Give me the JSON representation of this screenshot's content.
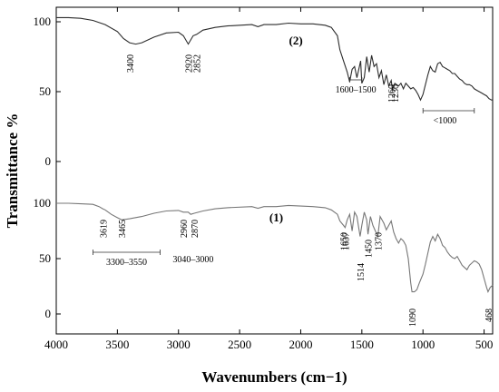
{
  "chart_data": {
    "type": "line",
    "xlabel": "Wavenumbers (cm−1)",
    "ylabel": "Transmittance %",
    "xlim": [
      4000,
      430
    ],
    "x_reversed": true,
    "x_ticks": [
      4000,
      3500,
      3000,
      2500,
      2000,
      1500,
      1000,
      500
    ],
    "y_tick_labels_upper": [
      "100",
      "50",
      "0"
    ],
    "y_tick_labels_lower": [
      "100",
      "50",
      "0"
    ],
    "upper_panel_ylim": [
      0,
      100
    ],
    "lower_panel_ylim": [
      0,
      100
    ],
    "grid": false,
    "series": [
      {
        "name": "(2)",
        "color": "#2b2b2b",
        "panel": "upper",
        "x": [
          4000,
          3900,
          3800,
          3700,
          3600,
          3500,
          3450,
          3400,
          3350,
          3300,
          3200,
          3100,
          3000,
          2960,
          2920,
          2880,
          2852,
          2800,
          2700,
          2600,
          2400,
          2350,
          2300,
          2200,
          2100,
          2000,
          1900,
          1800,
          1750,
          1700,
          1680,
          1650,
          1620,
          1600,
          1580,
          1560,
          1540,
          1510,
          1500,
          1480,
          1460,
          1440,
          1420,
          1400,
          1380,
          1360,
          1340,
          1320,
          1300,
          1280,
          1260,
          1250,
          1230,
          1200,
          1180,
          1160,
          1140,
          1100,
          1080,
          1060,
          1040,
          1020,
          1000,
          980,
          960,
          940,
          920,
          900,
          880,
          860,
          840,
          820,
          800,
          780,
          760,
          740,
          720,
          700,
          680,
          660,
          640,
          620,
          600,
          580,
          560,
          540,
          520,
          500,
          480,
          460,
          440,
          430
        ],
        "y": [
          103,
          103,
          102.5,
          101,
          98,
          93,
          88,
          85,
          84,
          85,
          89,
          92,
          92.5,
          90,
          84,
          90,
          91,
          94,
          96,
          97,
          98,
          96.5,
          98,
          98,
          99,
          98.5,
          98.5,
          97.5,
          96,
          90,
          80,
          72,
          64,
          57,
          66,
          68,
          60,
          72,
          56,
          60,
          75,
          64,
          76,
          68,
          70,
          60,
          65,
          55,
          62,
          54,
          58,
          52,
          56,
          54,
          56,
          52,
          56,
          52,
          53,
          51,
          48,
          44,
          48,
          55,
          62,
          68,
          65,
          64,
          70,
          71,
          68,
          67,
          66,
          65,
          63,
          63,
          61,
          59,
          58,
          56,
          55,
          55,
          54,
          52,
          51,
          50,
          49,
          48,
          47,
          45,
          44,
          44
        ]
      },
      {
        "name": "(1)",
        "color": "#777777",
        "panel": "lower",
        "x": [
          4000,
          3900,
          3800,
          3700,
          3650,
          3619,
          3600,
          3550,
          3500,
          3465,
          3400,
          3300,
          3200,
          3100,
          3000,
          2960,
          2920,
          2900,
          2870,
          2800,
          2700,
          2600,
          2400,
          2350,
          2300,
          2200,
          2100,
          2000,
          1900,
          1800,
          1750,
          1700,
          1680,
          1650,
          1637,
          1620,
          1600,
          1580,
          1560,
          1540,
          1514,
          1500,
          1480,
          1460,
          1450,
          1430,
          1410,
          1390,
          1370,
          1350,
          1320,
          1300,
          1280,
          1260,
          1240,
          1220,
          1200,
          1180,
          1160,
          1140,
          1120,
          1100,
          1090,
          1070,
          1050,
          1030,
          1000,
          980,
          960,
          940,
          920,
          900,
          880,
          860,
          840,
          820,
          800,
          780,
          760,
          740,
          720,
          700,
          680,
          660,
          640,
          620,
          600,
          580,
          560,
          540,
          520,
          500,
          480,
          468,
          450,
          430
        ],
        "y": [
          100,
          100,
          99.5,
          99,
          97,
          95,
          94,
          90,
          87,
          85,
          86,
          88,
          91,
          93,
          93.5,
          92,
          92,
          90,
          91,
          93,
          95,
          96,
          97,
          95.5,
          97,
          97,
          98,
          97.5,
          97,
          96,
          94,
          90,
          84,
          80,
          78,
          85,
          90,
          75,
          92,
          88,
          70,
          80,
          92,
          85,
          72,
          88,
          80,
          75,
          70,
          88,
          82,
          76,
          80,
          84,
          74,
          68,
          64,
          68,
          66,
          62,
          50,
          28,
          20,
          20,
          22,
          28,
          36,
          45,
          55,
          65,
          70,
          66,
          72,
          68,
          62,
          60,
          56,
          53,
          51,
          50,
          52,
          48,
          44,
          42,
          40,
          44,
          46,
          48,
          47,
          45,
          40,
          32,
          24,
          20,
          24,
          26
        ]
      }
    ],
    "annotations": {
      "upper": [
        {
          "label": "3400",
          "x": 3400
        },
        {
          "label": "2920",
          "x": 2920
        },
        {
          "label": "2852",
          "x": 2852
        },
        {
          "label": "1600–1500",
          "x": 1550,
          "range": [
            1600,
            1500
          ]
        },
        {
          "label": "1260",
          "x": 1260
        },
        {
          "label": "1230",
          "x": 1230
        },
        {
          "label": "<1000",
          "x": 820,
          "range": [
            1000,
            580
          ]
        }
      ],
      "lower": [
        {
          "label": "3619",
          "x": 3619
        },
        {
          "label": "3465",
          "x": 3465
        },
        {
          "label": "3300–3550",
          "x": 3425,
          "range": [
            3700,
            3150
          ]
        },
        {
          "label": "2960",
          "x": 2960
        },
        {
          "label": "2870",
          "x": 2870
        },
        {
          "label": "3040–3000",
          "x": 3020
        },
        {
          "label": "1650",
          "x": 1650
        },
        {
          "label": "1637",
          "x": 1637
        },
        {
          "label": "1514",
          "x": 1514
        },
        {
          "label": "1450",
          "x": 1450
        },
        {
          "label": "1370",
          "x": 1370
        },
        {
          "label": "1090",
          "x": 1090
        },
        {
          "label": "468",
          "x": 468
        }
      ]
    }
  }
}
